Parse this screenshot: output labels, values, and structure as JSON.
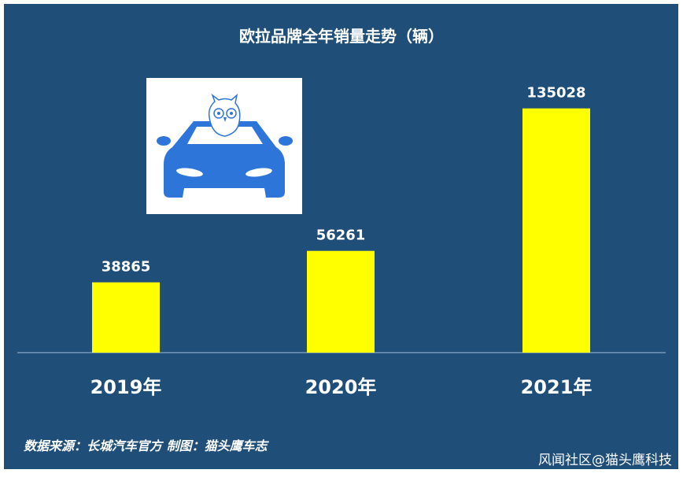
{
  "chart_data": {
    "type": "bar",
    "title": "欧拉品牌全年销量走势（辆）",
    "categories": [
      "2019年",
      "2020年",
      "2021年"
    ],
    "values": [
      38865,
      56261,
      135028
    ],
    "data_labels": [
      "38865",
      "56261",
      "135028"
    ],
    "ylim": [
      0,
      150000
    ],
    "grid": false,
    "bar_color": "#ffff00",
    "background_color": "#1f4e79"
  },
  "footer": {
    "source": "数据来源：长城汽车官方  制图：猫头鹰车志",
    "watermark": "风闻社区@猫头鹰科技"
  },
  "logo": {
    "icon": "owl-in-car-logo",
    "color": "#2e75d9"
  }
}
